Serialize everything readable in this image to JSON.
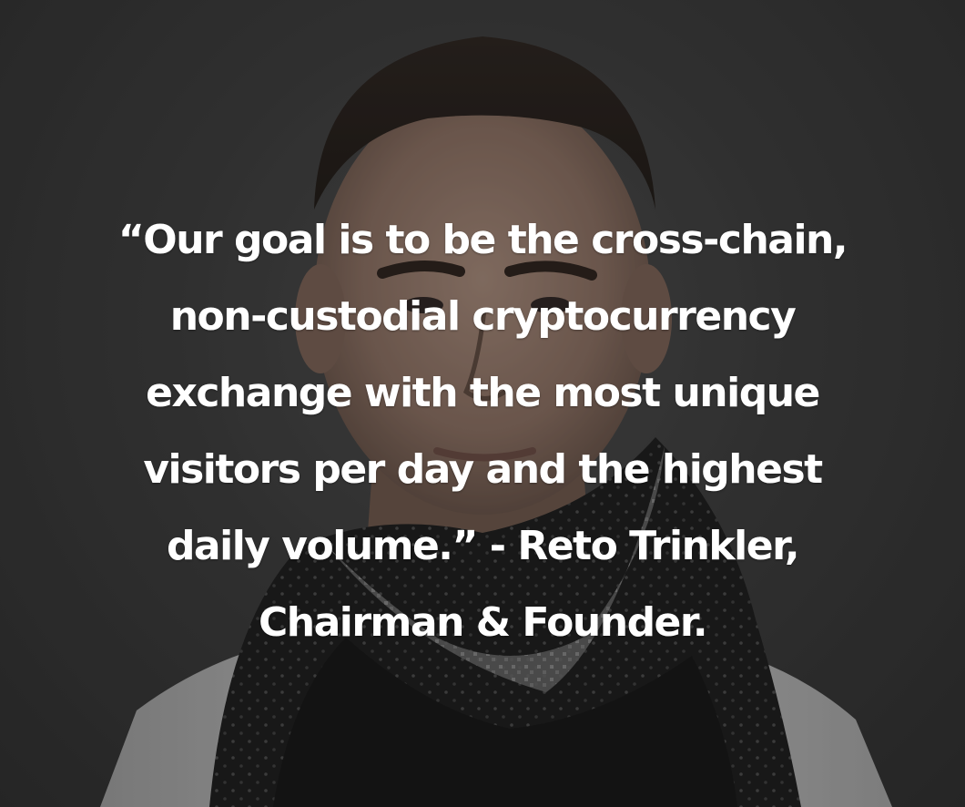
{
  "quote": {
    "lines": [
      "“Our goal is to be the cross-chain,",
      "non-custodial cryptocurrency",
      "exchange with the most unique",
      "visitors per day and the highest",
      "daily volume.”  -  Reto Trinkler,",
      "Chairman & Founder."
    ]
  },
  "colors": {
    "text": "#ffffff",
    "background": "#333333",
    "scarf": "#141414",
    "shirt": "#bdbdbd"
  },
  "icons": {
    "portrait": "man-portrait-with-scarf"
  }
}
